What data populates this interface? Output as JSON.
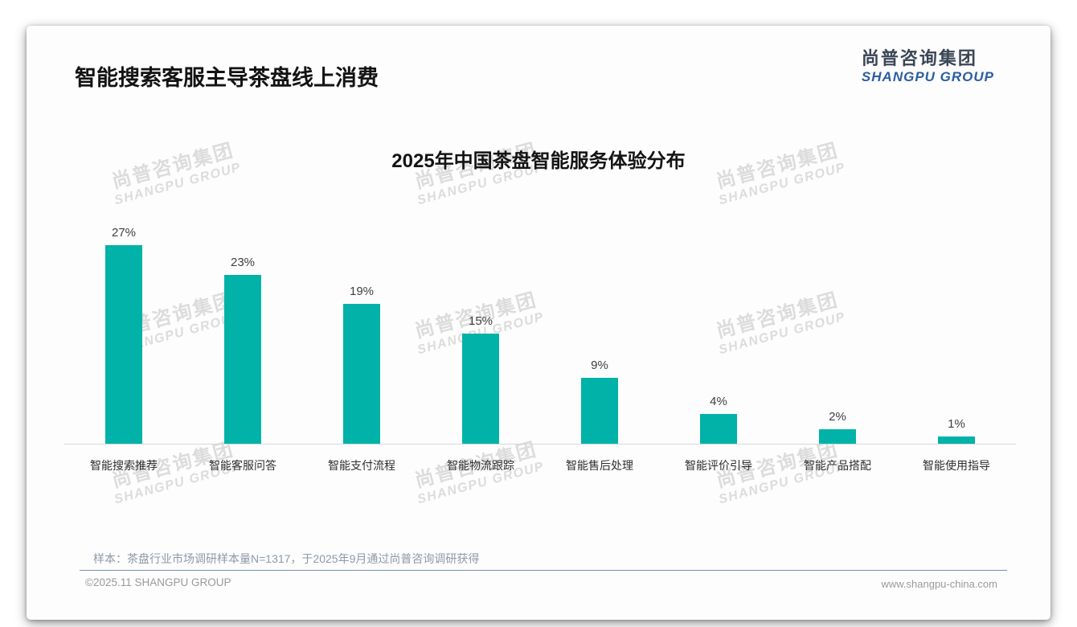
{
  "page": {
    "title": "智能搜索客服主导茶盘线上消费",
    "logo": {
      "cn": "尚普咨询集团",
      "en": "SHANGPU GROUP"
    },
    "watermark": {
      "cn": "尚普咨询集团",
      "en": "SHANGPU GROUP"
    },
    "footnote": "样本：茶盘行业市场调研样本量N=1317，于2025年9月通过尚普咨询调研获得",
    "footer_left": "©2025.11 SHANGPU GROUP",
    "footer_right": "www.shangpu-china.com"
  },
  "chart_data": {
    "type": "bar",
    "title": "2025年中国茶盘智能服务体验分布",
    "categories": [
      "智能搜索推荐",
      "智能客服问答",
      "智能支付流程",
      "智能物流跟踪",
      "智能售后处理",
      "智能评价引导",
      "智能产品搭配",
      "智能使用指导"
    ],
    "values": [
      27,
      23,
      19,
      15,
      9,
      4,
      2,
      1
    ],
    "unit": "%",
    "xlabel": "",
    "ylabel": "",
    "ylim": [
      0,
      30
    ],
    "grid": false,
    "legend": false,
    "bar_color": "#00b2a8",
    "value_label_color": "#3f3f3f",
    "axis_line_color": "#d5d8db"
  }
}
